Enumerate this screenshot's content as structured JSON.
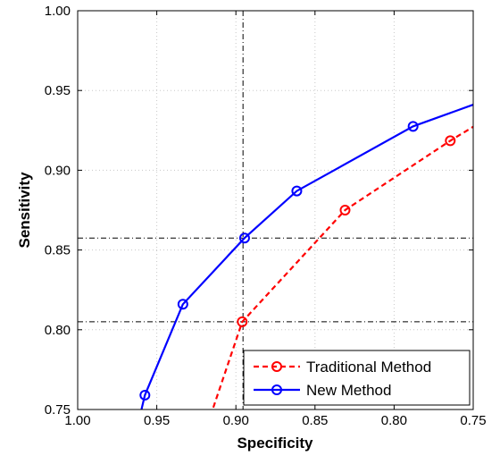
{
  "chart_data": {
    "type": "line",
    "title": "",
    "xlabel": "Specificity",
    "ylabel": "Sensitivity",
    "xlim": [
      1.0,
      0.75
    ],
    "ylim": [
      0.75,
      1.0
    ],
    "x_reversed": true,
    "grid": true,
    "legend_position": "bottom-right",
    "xticks": [
      1.0,
      0.95,
      0.9,
      0.85,
      0.8,
      0.75
    ],
    "xtick_labels": [
      "1.00",
      "0.95",
      "0.90",
      "0.85",
      "0.80",
      "0.75"
    ],
    "yticks": [
      0.75,
      0.8,
      0.85,
      0.9,
      0.95,
      1.0
    ],
    "ytick_labels": [
      "0.75",
      "0.80",
      "0.85",
      "0.90",
      "0.95",
      "1.00"
    ],
    "series": [
      {
        "name": "Traditional Method",
        "color": "#ff0000",
        "line_style": "dashed",
        "marker": "circle",
        "x": [
          0.9215,
          0.896,
          0.831,
          0.7645,
          0.724
        ],
        "y": [
          0.73,
          0.805,
          0.875,
          0.9185,
          0.943
        ],
        "line_end": [
          0.75,
          0.9525
        ]
      },
      {
        "name": "New Method",
        "color": "#0000ff",
        "line_style": "solid",
        "marker": "circle",
        "x": [
          0.9575,
          0.9335,
          0.8945,
          0.8615,
          0.788,
          0.7265
        ],
        "y": [
          0.759,
          0.816,
          0.8575,
          0.887,
          0.9275,
          0.9495
        ],
        "line_start": [
          0.9645,
          0.73
        ],
        "line_end": [
          0.75,
          0.956
        ]
      }
    ],
    "reference_lines": [
      {
        "orientation": "vertical",
        "value": 0.8955,
        "style": "dash-dot"
      },
      {
        "orientation": "horizontal",
        "value": 0.8575,
        "style": "dash-dot"
      },
      {
        "orientation": "horizontal",
        "value": 0.805,
        "style": "dash-dot"
      }
    ]
  }
}
